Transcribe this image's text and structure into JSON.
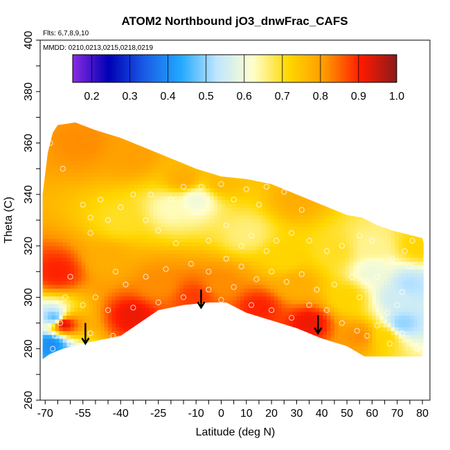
{
  "chart_data": {
    "type": "heatmap",
    "title": "ATOM2 Northbound jO3_dnwFrac_CAFS",
    "flights_label": "Flts: 6,7,8,9,10",
    "dates_label": "MMDD: 0210,0213,0215,0218,0219",
    "xlabel": "Latitude (deg N)",
    "ylabel": "Theta (C)",
    "xlim": [
      -72,
      83
    ],
    "ylim": [
      260,
      400
    ],
    "x_tick_labels": [
      "-70",
      "-55",
      "-40",
      "-25",
      "-10",
      "0",
      "10",
      "20",
      "30",
      "40",
      "50",
      "60",
      "70",
      "80"
    ],
    "y_tick_labels": [
      "260",
      "280",
      "300",
      "320",
      "340",
      "360",
      "380",
      "400"
    ],
    "colorbar": {
      "range": [
        0.15,
        1.0
      ],
      "tick_labels": [
        "0.2",
        "0.3",
        "0.4",
        "0.5",
        "0.6",
        "0.7",
        "0.8",
        "0.9",
        "1.0"
      ],
      "colors": [
        "#8a2be2",
        "#0000b4",
        "#1a5ce6",
        "#22a8ff",
        "#bfe6ff",
        "#ffffcc",
        "#ffd700",
        "#ff9900",
        "#ff1a00",
        "#8b1a1a"
      ]
    },
    "coverage_top": [
      [
        -71,
        340
      ],
      [
        -69,
        356
      ],
      [
        -67,
        364
      ],
      [
        -65,
        367
      ],
      [
        -58,
        368
      ],
      [
        -50,
        365
      ],
      [
        -40,
        362
      ],
      [
        -25,
        356
      ],
      [
        -10,
        350
      ],
      [
        0,
        347
      ],
      [
        10,
        346
      ],
      [
        20,
        344
      ],
      [
        30,
        340
      ],
      [
        40,
        336
      ],
      [
        50,
        332
      ],
      [
        56,
        331
      ],
      [
        62,
        328
      ],
      [
        68,
        326
      ],
      [
        72,
        325
      ],
      [
        76,
        324
      ],
      [
        80,
        323
      ],
      [
        80.5,
        321
      ]
    ],
    "coverage_bottom": [
      [
        80.5,
        282
      ],
      [
        80,
        277
      ],
      [
        70,
        277
      ],
      [
        57,
        277
      ],
      [
        50,
        281
      ],
      [
        40,
        284
      ],
      [
        30,
        288
      ],
      [
        20,
        291
      ],
      [
        10,
        294
      ],
      [
        2,
        298
      ],
      [
        -5,
        298
      ],
      [
        -15,
        297
      ],
      [
        -25,
        295
      ],
      [
        -40,
        285
      ],
      [
        -55,
        282
      ],
      [
        -63,
        280
      ],
      [
        -68,
        278
      ],
      [
        -71,
        276
      ]
    ],
    "field_samples": [
      {
        "lat": -65,
        "theta": 310,
        "value": 0.9
      },
      {
        "lat": -63,
        "theta": 290,
        "value": 0.95
      },
      {
        "lat": -68,
        "theta": 282,
        "value": 0.4
      },
      {
        "lat": -66,
        "theta": 292,
        "value": 0.45
      },
      {
        "lat": -55,
        "theta": 360,
        "value": 0.82
      },
      {
        "lat": -35,
        "theta": 355,
        "value": 0.8
      },
      {
        "lat": -15,
        "theta": 346,
        "value": 0.78
      },
      {
        "lat": 0,
        "theta": 345,
        "value": 0.76
      },
      {
        "lat": 30,
        "theta": 338,
        "value": 0.78
      },
      {
        "lat": -40,
        "theta": 330,
        "value": 0.7
      },
      {
        "lat": -20,
        "theta": 335,
        "value": 0.63
      },
      {
        "lat": -10,
        "theta": 338,
        "value": 0.6
      },
      {
        "lat": 10,
        "theta": 325,
        "value": 0.66
      },
      {
        "lat": 25,
        "theta": 315,
        "value": 0.72
      },
      {
        "lat": -45,
        "theta": 315,
        "value": 0.78
      },
      {
        "lat": -25,
        "theta": 305,
        "value": 0.82
      },
      {
        "lat": -10,
        "theta": 300,
        "value": 0.88
      },
      {
        "lat": 0,
        "theta": 305,
        "value": 0.82
      },
      {
        "lat": -35,
        "theta": 293,
        "value": 0.92
      },
      {
        "lat": 15,
        "theta": 296,
        "value": 0.9
      },
      {
        "lat": 35,
        "theta": 290,
        "value": 0.92
      },
      {
        "lat": 30,
        "theta": 305,
        "value": 0.78
      },
      {
        "lat": 50,
        "theta": 300,
        "value": 0.72
      },
      {
        "lat": 45,
        "theta": 318,
        "value": 0.7
      },
      {
        "lat": 60,
        "theta": 320,
        "value": 0.65
      },
      {
        "lat": 70,
        "theta": 300,
        "value": 0.55
      },
      {
        "lat": 72,
        "theta": 290,
        "value": 0.5
      },
      {
        "lat": 75,
        "theta": 305,
        "value": 0.52
      },
      {
        "lat": 78,
        "theta": 320,
        "value": 0.72
      },
      {
        "lat": 65,
        "theta": 285,
        "value": 0.72
      },
      {
        "lat": 55,
        "theta": 285,
        "value": 0.82
      },
      {
        "lat": 60,
        "theta": 310,
        "value": 0.6
      }
    ],
    "sample_points": [
      [
        -68,
        360
      ],
      [
        -63,
        350
      ],
      [
        -55,
        336
      ],
      [
        -52,
        331
      ],
      [
        -45,
        330
      ],
      [
        -48,
        338
      ],
      [
        -52,
        325
      ],
      [
        -40,
        335
      ],
      [
        -35,
        340
      ],
      [
        -28,
        340
      ],
      [
        -20,
        338
      ],
      [
        -15,
        343
      ],
      [
        -8,
        343
      ],
      [
        0,
        344
      ],
      [
        5,
        338
      ],
      [
        10,
        342
      ],
      [
        15,
        336
      ],
      [
        18,
        343
      ],
      [
        25,
        341
      ],
      [
        32,
        334
      ],
      [
        -30,
        330
      ],
      [
        -25,
        326
      ],
      [
        -18,
        321
      ],
      [
        -10,
        333
      ],
      [
        -5,
        322
      ],
      [
        2,
        328
      ],
      [
        8,
        320
      ],
      [
        12,
        324
      ],
      [
        18,
        318
      ],
      [
        22,
        322
      ],
      [
        28,
        325
      ],
      [
        35,
        322
      ],
      [
        42,
        318
      ],
      [
        48,
        320
      ],
      [
        55,
        324
      ],
      [
        60,
        322
      ],
      [
        -42,
        310
      ],
      [
        -38,
        305
      ],
      [
        -30,
        308
      ],
      [
        -22,
        311
      ],
      [
        -12,
        313
      ],
      [
        -5,
        310
      ],
      [
        2,
        315
      ],
      [
        8,
        312
      ],
      [
        14,
        307
      ],
      [
        20,
        310
      ],
      [
        26,
        306
      ],
      [
        32,
        309
      ],
      [
        38,
        303
      ],
      [
        45,
        305
      ],
      [
        52,
        308
      ],
      [
        58,
        306
      ],
      [
        -55,
        297
      ],
      [
        -50,
        300
      ],
      [
        -45,
        295
      ],
      [
        -35,
        296
      ],
      [
        -25,
        298
      ],
      [
        -15,
        300
      ],
      [
        -5,
        303
      ],
      [
        0,
        299
      ],
      [
        5,
        304
      ],
      [
        12,
        297
      ],
      [
        20,
        295
      ],
      [
        28,
        292
      ],
      [
        35,
        297
      ],
      [
        42,
        295
      ],
      [
        48,
        290
      ],
      [
        54,
        287
      ],
      [
        58,
        285
      ],
      [
        62,
        289
      ],
      [
        66,
        294
      ],
      [
        70,
        297
      ],
      [
        72,
        302
      ],
      [
        75,
        312
      ],
      [
        72,
        286
      ],
      [
        67,
        282
      ],
      [
        78,
        280
      ],
      [
        -60,
        308
      ],
      [
        -62,
        300
      ],
      [
        -64,
        290
      ],
      [
        -66,
        285
      ],
      [
        -67,
        280
      ],
      [
        -60,
        282
      ],
      [
        -52,
        286
      ],
      [
        -43,
        285
      ],
      [
        55,
        300
      ],
      [
        62,
        308
      ],
      [
        68,
        315
      ],
      [
        73,
        318
      ],
      [
        76,
        322
      ]
    ],
    "annotations": [
      {
        "type": "arrow",
        "lat": -54,
        "theta_from": 290,
        "theta_to": 282
      },
      {
        "type": "arrow",
        "lat": -8,
        "theta_from": 303,
        "theta_to": 296
      },
      {
        "type": "arrow",
        "lat": 38.5,
        "theta_from": 293,
        "theta_to": 286
      }
    ]
  }
}
